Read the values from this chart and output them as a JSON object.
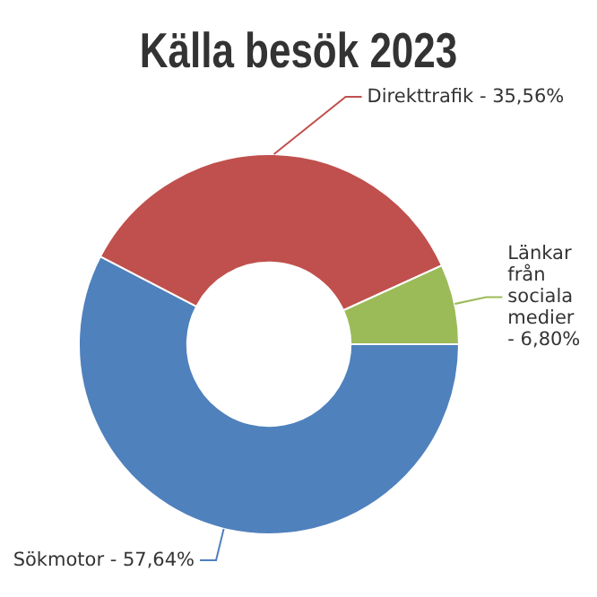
{
  "chart_data": {
    "type": "donut",
    "title": "Källa besök 2023",
    "categories": [
      "Sökmotor -",
      "Direkttrafik -",
      "Länkar från sociala medier -"
    ],
    "values": [
      57.64,
      35.56,
      6.8
    ],
    "value_labels": [
      "57,64%",
      "35,56%",
      "6,80%"
    ],
    "colors": [
      "#4f81bd",
      "#c0504d",
      "#9bbb59"
    ]
  }
}
